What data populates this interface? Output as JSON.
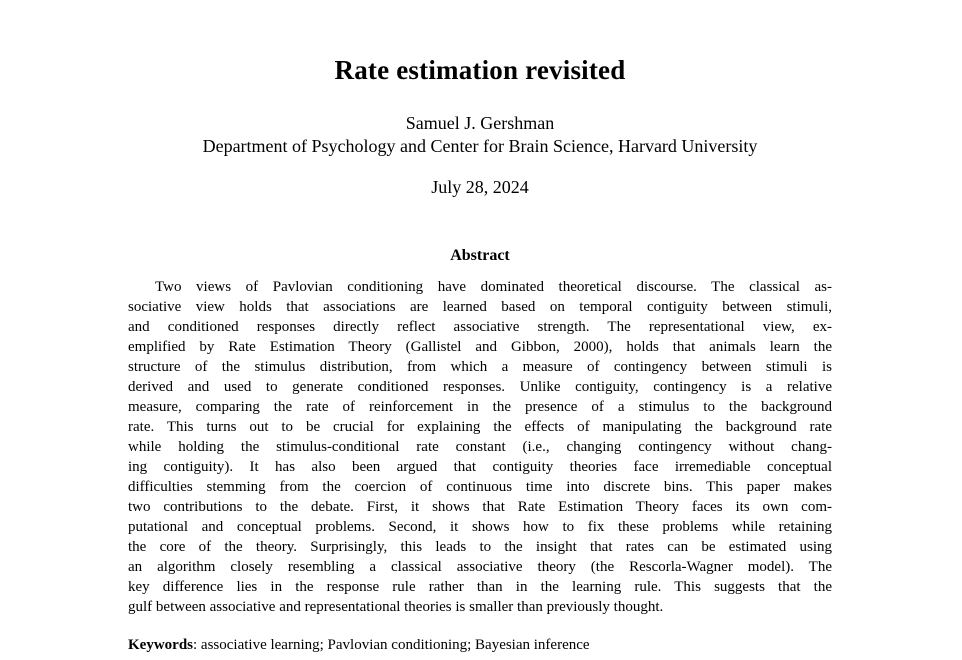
{
  "page": {
    "title": "Rate estimation revisited",
    "author": "Samuel J. Gershman",
    "affiliation": "Department of Psychology and Center for Brain Science, Harvard University",
    "date": "July 28, 2024"
  },
  "abstract": {
    "heading": "Abstract",
    "lines": [
      "Two views of Pavlovian conditioning have dominated theoretical discourse. The classical as-",
      "sociative view holds that associations are learned based on temporal contiguity between stimuli,",
      "and conditioned responses directly reflect associative strength. The representational view, ex-",
      "emplified by Rate Estimation Theory (Gallistel and Gibbon, 2000), holds that animals learn the",
      "structure of the stimulus distribution, from which a measure of contingency between stimuli is",
      "derived and used to generate conditioned responses. Unlike contiguity, contingency is a relative",
      "measure, comparing the rate of reinforcement in the presence of a stimulus to the background",
      "rate. This turns out to be crucial for explaining the effects of manipulating the background rate",
      "while holding the stimulus-conditional rate constant (i.e., changing contingency without chang-",
      "ing contiguity). It has also been argued that contiguity theories face irremediable conceptual",
      "difficulties stemming from the coercion of continuous time into discrete bins. This paper makes",
      "two contributions to the debate. First, it shows that Rate Estimation Theory faces its own com-",
      "putational and conceptual problems. Second, it shows how to fix these problems while retaining",
      "the core of the theory. Surprisingly, this leads to the insight that rates can be estimated using",
      "an algorithm closely resembling a classical associative theory (the Rescorla-Wagner model). The",
      "key difference lies in the response rule rather than in the learning rule. This suggests that the",
      "gulf between associative and representational theories is smaller than previously thought."
    ]
  },
  "keywords": {
    "label": "Keywords",
    "text": ": associative learning; Pavlovian conditioning; Bayesian inference"
  }
}
